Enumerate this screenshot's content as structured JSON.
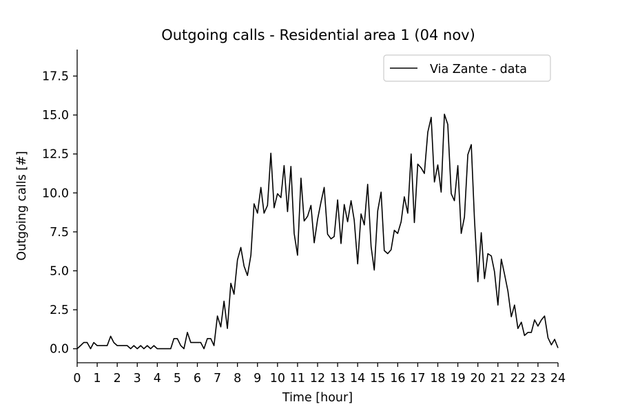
{
  "chart_data": {
    "type": "line",
    "title": "Outgoing calls - Residential area 1 (04 nov)",
    "xlabel": "Time [hour]",
    "ylabel": "Outgoing calls [#]",
    "xlim": [
      0,
      24
    ],
    "ylim": [
      -0.9,
      19.2
    ],
    "xticks": [
      0,
      1,
      2,
      3,
      4,
      5,
      6,
      7,
      8,
      9,
      10,
      11,
      12,
      13,
      14,
      15,
      16,
      17,
      18,
      19,
      20,
      21,
      22,
      23,
      24
    ],
    "yticks": [
      0.0,
      2.5,
      5.0,
      7.5,
      10.0,
      12.5,
      15.0,
      17.5
    ],
    "ytick_labels": [
      "0.0",
      "2.5",
      "5.0",
      "7.5",
      "10.0",
      "12.5",
      "15.0",
      "17.5"
    ],
    "grid": false,
    "legend_position": "top-right",
    "line_color": "#000000",
    "series": [
      {
        "name": "Via Zante - data",
        "x": [
          0,
          0.17,
          0.33,
          0.5,
          0.67,
          0.83,
          1.0,
          1.17,
          1.33,
          1.5,
          1.67,
          1.83,
          2.0,
          2.17,
          2.33,
          2.5,
          2.67,
          2.83,
          3.0,
          3.17,
          3.33,
          3.5,
          3.67,
          3.83,
          4.0,
          4.17,
          4.33,
          4.5,
          4.67,
          4.83,
          5.0,
          5.17,
          5.33,
          5.5,
          5.67,
          5.83,
          6.0,
          6.17,
          6.33,
          6.5,
          6.67,
          6.83,
          7.0,
          7.17,
          7.33,
          7.5,
          7.67,
          7.83,
          8.0,
          8.17,
          8.33,
          8.5,
          8.67,
          8.83,
          9.0,
          9.17,
          9.33,
          9.5,
          9.67,
          9.83,
          10.0,
          10.17,
          10.33,
          10.5,
          10.67,
          10.83,
          11.0,
          11.17,
          11.33,
          11.5,
          11.67,
          11.83,
          12.0,
          12.17,
          12.33,
          12.5,
          12.67,
          12.83,
          13.0,
          13.17,
          13.33,
          13.5,
          13.67,
          13.83,
          14.0,
          14.17,
          14.33,
          14.5,
          14.67,
          14.83,
          15.0,
          15.17,
          15.33,
          15.5,
          15.67,
          15.83,
          16.0,
          16.17,
          16.33,
          16.5,
          16.67,
          16.83,
          17.0,
          17.17,
          17.33,
          17.5,
          17.67,
          17.83,
          18.0,
          18.17,
          18.33,
          18.5,
          18.67,
          18.83,
          19.0,
          19.17,
          19.33,
          19.5,
          19.67,
          19.83,
          20.0,
          20.17,
          20.33,
          20.5,
          20.67,
          20.83,
          21.0,
          21.17,
          21.33,
          21.5,
          21.67,
          21.83,
          22.0,
          22.17,
          22.33,
          22.5,
          22.67,
          22.83,
          23.0,
          23.17,
          23.33,
          23.5,
          23.67,
          23.83,
          24.0
        ],
        "values": [
          0.0,
          0.2,
          0.4,
          0.4,
          0.0,
          0.4,
          0.2,
          0.2,
          0.2,
          0.2,
          0.8,
          0.4,
          0.2,
          0.2,
          0.2,
          0.2,
          0.0,
          0.2,
          0.0,
          0.2,
          0.0,
          0.2,
          0.0,
          0.2,
          0.0,
          0.0,
          0.0,
          0.0,
          0.0,
          0.65,
          0.65,
          0.2,
          0.0,
          1.05,
          0.4,
          0.4,
          0.4,
          0.4,
          0.0,
          0.65,
          0.65,
          0.2,
          2.1,
          1.4,
          3.05,
          1.3,
          4.2,
          3.5,
          5.7,
          6.5,
          5.3,
          4.7,
          6.0,
          9.3,
          8.7,
          10.35,
          8.7,
          9.2,
          12.55,
          9.05,
          9.95,
          9.7,
          11.75,
          8.8,
          11.7,
          7.4,
          6.0,
          10.95,
          8.2,
          8.5,
          9.2,
          6.8,
          8.3,
          9.4,
          10.35,
          7.35,
          7.05,
          7.2,
          9.55,
          6.75,
          9.25,
          8.15,
          9.5,
          8.25,
          5.45,
          8.65,
          7.95,
          10.55,
          6.55,
          5.05,
          8.85,
          10.05,
          6.3,
          6.1,
          6.35,
          7.6,
          7.4,
          8.15,
          9.75,
          8.7,
          12.5,
          8.1,
          11.85,
          11.6,
          11.25,
          13.9,
          14.85,
          10.7,
          11.8,
          10.05,
          15.05,
          14.4,
          9.95,
          9.5,
          11.75,
          7.4,
          8.45,
          12.45,
          13.1,
          8.35,
          4.3,
          7.45,
          4.5,
          6.1,
          5.95,
          4.95,
          2.8,
          5.75,
          4.8,
          3.7,
          2.05,
          2.8,
          1.3,
          1.7,
          0.85,
          1.05,
          1.05,
          1.85,
          1.45,
          1.85,
          2.1,
          0.7,
          0.25,
          0.6,
          0.05
        ]
      }
    ]
  }
}
